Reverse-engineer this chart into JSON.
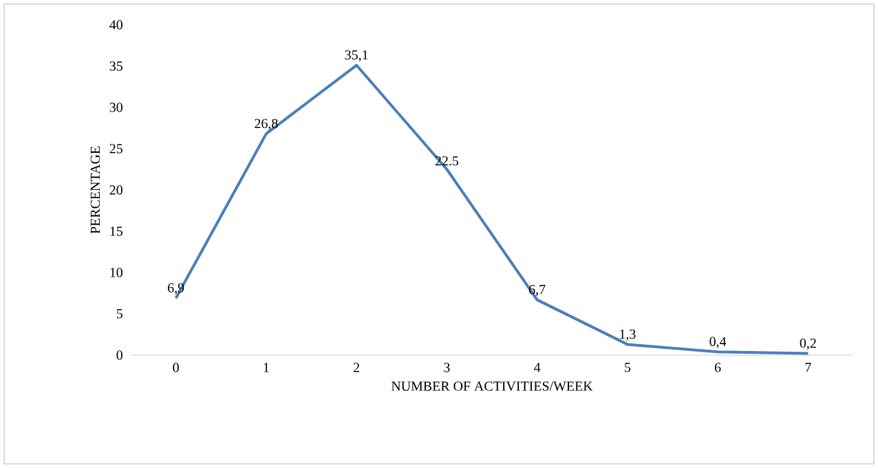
{
  "chart_data": {
    "type": "line",
    "xlabel": "NUMBER OF ACTIVITIES/WEEK",
    "ylabel": "PERCENTAGE",
    "categories": [
      "0",
      "1",
      "2",
      "3",
      "4",
      "5",
      "6",
      "7"
    ],
    "series": [
      {
        "color": "#4a7ebb",
        "values": [
          6.9,
          26.8,
          35.1,
          22.5,
          6.7,
          1.3,
          0.4,
          0.2
        ],
        "value_labels": [
          "6,9",
          "26,8",
          "35,1",
          "22.5",
          "6,7",
          "1,3",
          "0,4",
          "0,2"
        ]
      }
    ],
    "ylim": [
      0,
      40
    ],
    "yticks": [
      0,
      5,
      10,
      15,
      20,
      25,
      30,
      35,
      40
    ],
    "grid": false,
    "marker": "none",
    "line_style": "solid"
  }
}
